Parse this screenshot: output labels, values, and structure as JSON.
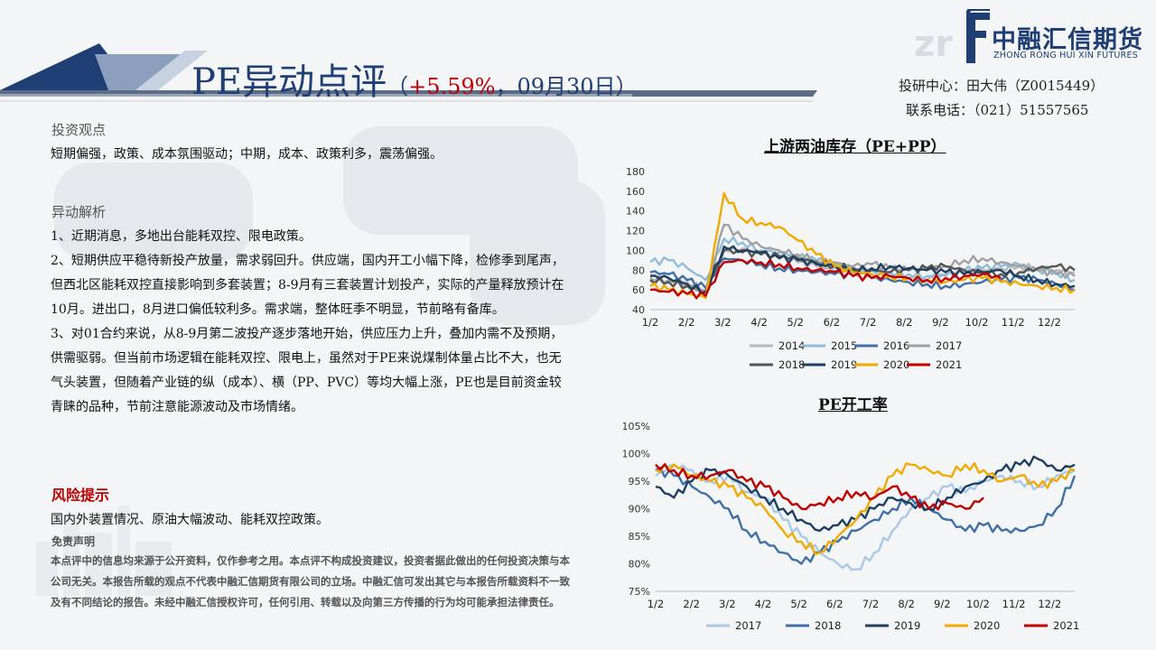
{
  "header": {
    "title": "PE异动点评",
    "sub_open": "（",
    "sub_change": "+5.59%",
    "sub_close": "，09月30日）"
  },
  "logo": {
    "cn": "中融汇信期货",
    "en": "ZHONG RONG HUI XIN FUTURES"
  },
  "contact": {
    "line1": "投研中心：田大伟（Z0015449）",
    "line2": "联系电话：（021）51557565"
  },
  "sections": {
    "view_title": "投资观点",
    "view_text": "短期偏强，政策、成本氛围驱动；中期，成本、政策利多，震荡偏强。",
    "analysis_title": "异动解析",
    "analysis_paras": [
      "1、近期消息，多地出台能耗双控、限电政策。",
      "2、短期供应平稳待新投产放量，需求弱回升。供应端，国内开工小幅下降，检修季到尾声，但西北区能耗双控直接影响到多套装置；8-9月有三套装置计划投产，实际的产量释放预计在10月。进出口，8月进口偏低较利多。需求端，整体旺季不明显，节前略有备库。",
      "3、对01合约来说，从8-9月第二波投产逐步落地开始，供应压力上升，叠加内需不及预期，供需驱弱。但当前市场逻辑在能耗双控、限电上，虽然对于PE来说煤制体量占比不大，也无气头装置，但随着产业链的纵（成本）、横（PP、PVC）等均大幅上涨，PE也是目前资金较青睐的品种，节前注意能源波动及市场情绪。"
    ],
    "risk_title": "风险提示",
    "risk_text": "国内外装置情况、原油大幅波动、能耗双控政策。",
    "disclaimer_title": "免责声明",
    "disclaimer_text": "本点评中的信息均来源于公开资料，仅作参考之用。本点评不构成投资建议，投资者据此做出的任何投资决策与本公司无关。本报告所载的观点不代表中融汇信期货有限公司的立场。中融汇信可发出其它与本报告所载资料不一致及有不同结论的报告。未经中融汇信授权许可，任何引用、转载以及向第三方传播的行为均可能承担法律责任。"
  },
  "chart_data": [
    {
      "type": "line",
      "title": "上游两油库存（PE+PP）",
      "xlabel": "",
      "ylabel": "",
      "x_ticks": [
        "1/2",
        "2/2",
        "3/2",
        "4/2",
        "5/2",
        "6/2",
        "7/2",
        "8/2",
        "9/2",
        "10/2",
        "11/2",
        "12/2"
      ],
      "ylim": [
        40,
        180
      ],
      "y_ticks": [
        40,
        60,
        80,
        100,
        120,
        140,
        160,
        180
      ],
      "legend_position": "bottom",
      "series": [
        {
          "name": "2014",
          "color": "#b8b8b8",
          "values": [
            75,
            72,
            68,
            60,
            100,
            102,
            96,
            92,
            88,
            84,
            80,
            78,
            76,
            74,
            72,
            70,
            74,
            78,
            80,
            82,
            84,
            82,
            80,
            78
          ]
        },
        {
          "name": "2015",
          "color": "#8fbcd8",
          "values": [
            88,
            90,
            82,
            70,
            112,
            108,
            100,
            98,
            94,
            90,
            86,
            82,
            80,
            78,
            76,
            74,
            76,
            80,
            82,
            84,
            86,
            80,
            78,
            70
          ]
        },
        {
          "name": "2016",
          "color": "#3f6fa5",
          "values": [
            78,
            76,
            70,
            62,
            92,
            90,
            86,
            82,
            80,
            78,
            76,
            74,
            72,
            70,
            68,
            66,
            64,
            66,
            68,
            70,
            72,
            70,
            66,
            60
          ]
        },
        {
          "name": "2017",
          "color": "#a0a0a0",
          "values": [
            72,
            70,
            64,
            58,
            126,
            112,
            104,
            100,
            96,
            90,
            88,
            84,
            86,
            82,
            80,
            82,
            84,
            90,
            92,
            88,
            84,
            80,
            76,
            74
          ]
        },
        {
          "name": "2018",
          "color": "#555555",
          "values": [
            70,
            68,
            64,
            58,
            100,
            98,
            96,
            94,
            92,
            88,
            84,
            82,
            80,
            78,
            80,
            82,
            84,
            80,
            78,
            76,
            78,
            82,
            84,
            80
          ]
        },
        {
          "name": "2019",
          "color": "#1f3f5f",
          "values": [
            74,
            72,
            66,
            58,
            104,
            100,
            98,
            92,
            90,
            86,
            84,
            80,
            82,
            84,
            82,
            80,
            78,
            76,
            78,
            80,
            74,
            70,
            66,
            64
          ]
        },
        {
          "name": "2020",
          "color": "#f2a900",
          "values": [
            64,
            60,
            56,
            52,
            158,
            132,
            128,
            124,
            110,
            96,
            84,
            78,
            76,
            74,
            72,
            70,
            68,
            70,
            72,
            68,
            66,
            64,
            62,
            60
          ]
        },
        {
          "name": "2021",
          "color": "#c00000",
          "values": [
            60,
            58,
            56,
            54,
            88,
            90,
            88,
            86,
            82,
            80,
            78,
            74,
            72,
            74,
            72,
            70,
            72,
            74,
            76,
            72,
            null,
            null,
            null,
            null
          ]
        }
      ]
    },
    {
      "type": "line",
      "title": "PE开工率",
      "xlabel": "",
      "ylabel": "",
      "x_ticks": [
        "1/2",
        "2/2",
        "3/2",
        "4/2",
        "5/2",
        "6/2",
        "7/2",
        "8/2",
        "9/2",
        "10/2",
        "11/2",
        "12/2"
      ],
      "ylim": [
        75,
        105
      ],
      "y_ticks": [
        "75%",
        "80%",
        "85%",
        "90%",
        "95%",
        "100%",
        "105%"
      ],
      "legend_position": "bottom",
      "series": [
        {
          "name": "2017",
          "color": "#a8c8e8",
          "values": [
            96,
            98,
            97,
            95,
            96,
            93,
            92,
            88,
            85,
            82,
            80,
            79,
            82,
            86,
            90,
            92,
            94,
            93,
            95,
            96,
            95,
            94,
            96,
            97
          ]
        },
        {
          "name": "2018",
          "color": "#3f6fa5",
          "values": [
            97,
            96,
            94,
            92,
            90,
            86,
            84,
            82,
            80,
            82,
            84,
            86,
            88,
            90,
            92,
            90,
            88,
            86,
            87,
            86,
            86,
            87,
            90,
            96
          ]
        },
        {
          "name": "2019",
          "color": "#1f3f5f",
          "values": [
            94,
            92,
            95,
            97,
            96,
            94,
            92,
            90,
            88,
            86,
            87,
            88,
            90,
            92,
            91,
            90,
            92,
            94,
            95,
            97,
            98,
            99,
            97,
            98
          ]
        },
        {
          "name": "2020",
          "color": "#f2a900",
          "values": [
            97,
            98,
            96,
            95,
            94,
            92,
            90,
            86,
            84,
            82,
            85,
            88,
            92,
            96,
            98,
            97,
            96,
            98,
            97,
            95,
            96,
            94,
            95,
            97
          ]
        },
        {
          "name": "2021",
          "color": "#c00000",
          "values": [
            98,
            97,
            96,
            96,
            97,
            95,
            94,
            92,
            90,
            91,
            92,
            93,
            92,
            94,
            92,
            90,
            91,
            90,
            92,
            null,
            null,
            null,
            null,
            null
          ]
        }
      ]
    }
  ]
}
